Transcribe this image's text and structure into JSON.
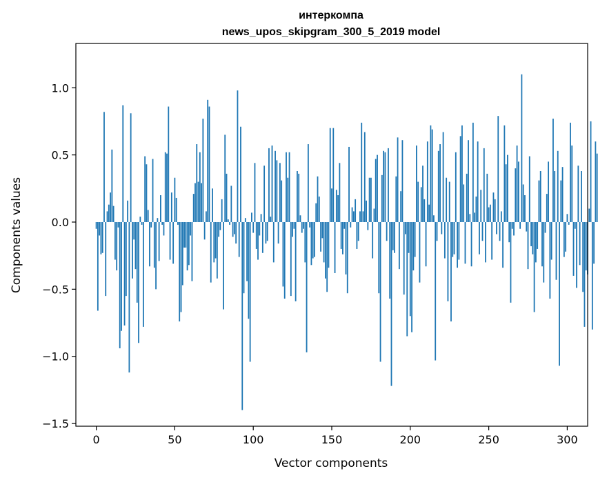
{
  "chart_data": {
    "type": "bar",
    "title": "интеркомпа",
    "subtitle": "news_upos_skipgram_300_5_2019 model",
    "xlabel": "Vector components",
    "ylabel": "Components values",
    "xlim": [
      -13,
      313
    ],
    "ylim": [
      -1.52,
      1.33
    ],
    "xticks": [
      0,
      50,
      100,
      150,
      200,
      250,
      300
    ],
    "yticks": [
      -1.5,
      -1.0,
      -0.5,
      0.0,
      0.5,
      1.0
    ],
    "ytick_labels": [
      "−1.5",
      "−1.0",
      "−0.5",
      "0.0",
      "0.5",
      "1.0"
    ],
    "bar_color": "#1f77b4",
    "grid": false,
    "values": [
      -0.05,
      -0.66,
      -0.1,
      -0.24,
      -0.23,
      0.82,
      -0.55,
      0.08,
      0.13,
      0.22,
      0.54,
      0.12,
      -0.28,
      -0.36,
      -0.04,
      -0.94,
      -0.81,
      0.87,
      -0.77,
      -0.55,
      0.16,
      -1.12,
      0.81,
      -0.42,
      -0.13,
      -0.35,
      -0.6,
      -0.9,
      0.04,
      -0.02,
      -0.78,
      0.49,
      0.43,
      0.09,
      -0.33,
      -0.04,
      0.47,
      -0.34,
      -0.5,
      0.03,
      -0.29,
      0.2,
      -0.02,
      -0.1,
      0.52,
      0.51,
      0.86,
      -0.28,
      0.22,
      -0.31,
      0.33,
      0.18,
      -0.02,
      -0.74,
      -0.67,
      -0.47,
      -0.19,
      -0.19,
      -0.36,
      -0.32,
      -0.1,
      -0.44,
      0.21,
      0.29,
      0.58,
      0.3,
      0.52,
      0.29,
      0.77,
      -0.13,
      0.08,
      0.91,
      0.86,
      -0.45,
      0.25,
      -0.3,
      -0.27,
      -0.42,
      -0.11,
      -0.06,
      0.17,
      -0.65,
      0.65,
      0.36,
      0.02,
      -0.02,
      0.27,
      -0.11,
      -0.09,
      -0.16,
      0.98,
      -0.26,
      0.71,
      -1.4,
      -0.53,
      0.03,
      -0.44,
      -0.72,
      -1.04,
      0.07,
      -0.08,
      0.44,
      -0.2,
      -0.28,
      -0.1,
      0.06,
      -0.23,
      0.42,
      -0.16,
      -0.14,
      0.55,
      0.04,
      0.57,
      -0.3,
      0.53,
      0.46,
      -0.16,
      0.44,
      0.31,
      -0.48,
      -0.57,
      0.52,
      0.33,
      0.52,
      -0.55,
      -0.11,
      -0.05,
      -0.59,
      0.38,
      0.36,
      0.05,
      -0.08,
      -0.05,
      -0.3,
      -0.97,
      0.58,
      -0.04,
      -0.32,
      -0.27,
      -0.26,
      0.14,
      0.34,
      0.19,
      -0.22,
      -0.12,
      -0.3,
      -0.42,
      -0.52,
      -0.34,
      0.7,
      0.25,
      0.7,
      -0.38,
      0.24,
      0.2,
      0.44,
      -0.2,
      -0.24,
      -0.05,
      -0.39,
      -0.53,
      0.56,
      -0.04,
      0.11,
      0.08,
      0.17,
      -0.2,
      -0.14,
      0.08,
      0.74,
      0.08,
      0.67,
      0.16,
      -0.06,
      0.33,
      0.33,
      -0.27,
      0.1,
      0.47,
      0.5,
      -0.53,
      -1.04,
      0.35,
      0.53,
      0.52,
      -0.14,
      0.55,
      -0.57,
      -1.22,
      -0.21,
      -0.23,
      0.34,
      0.63,
      -0.35,
      0.23,
      0.61,
      -0.54,
      -0.09,
      -0.85,
      -0.23,
      -0.7,
      -0.82,
      -0.36,
      -0.26,
      0.57,
      0.3,
      -0.45,
      0.26,
      0.42,
      0.17,
      -0.33,
      0.6,
      0.13,
      0.72,
      0.69,
      0.05,
      -1.03,
      -0.14,
      0.53,
      0.58,
      -0.09,
      0.67,
      -0.27,
      0.33,
      -0.59,
      0.3,
      -0.74,
      -0.26,
      -0.24,
      0.52,
      -0.34,
      -0.28,
      0.64,
      0.72,
      0.28,
      -0.31,
      0.36,
      0.61,
      0.06,
      -0.33,
      0.74,
      0.07,
      0.19,
      0.6,
      -0.24,
      0.24,
      -0.14,
      0.55,
      -0.3,
      0.36,
      0.11,
      0.13,
      -0.28,
      0.22,
      0.17,
      -0.09,
      0.79,
      -0.14,
      0.08,
      -0.34,
      0.72,
      0.43,
      0.5,
      -0.15,
      -0.6,
      -0.05,
      -0.1,
      0.4,
      0.57,
      0.45,
      -0.05,
      1.1,
      0.28,
      0.2,
      -0.07,
      -0.35,
      0.49,
      -0.18,
      -0.24,
      -0.67,
      -0.3,
      -0.2,
      0.31,
      0.38,
      -0.33,
      -0.45,
      -0.08,
      0.21,
      0.45,
      -0.57,
      -0.28,
      0.77,
      0.38,
      -0.43,
      0.53,
      -1.07,
      0.31,
      0.41,
      -0.26,
      -0.22,
      0.06,
      -0.02,
      0.74,
      0.57,
      -0.4,
      -0.05,
      -0.49,
      0.42,
      -0.32,
      0.38,
      -0.52,
      -0.78,
      -0.36,
      -0.39,
      0.1,
      0.75,
      -0.8,
      -0.31,
      0.6,
      0.51,
      -0.08
    ]
  }
}
